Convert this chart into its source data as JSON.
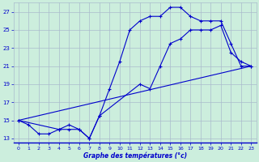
{
  "title": "Graphe des températures (°c)",
  "bg_color": "#cceedd",
  "grid_color": "#aabbcc",
  "line_color": "#0000cc",
  "xlim_min": -0.5,
  "xlim_max": 23.5,
  "ylim_min": 12.5,
  "ylim_max": 28.0,
  "xticks": [
    0,
    1,
    2,
    3,
    4,
    5,
    6,
    7,
    8,
    9,
    10,
    11,
    12,
    13,
    14,
    15,
    16,
    17,
    18,
    19,
    20,
    21,
    22,
    23
  ],
  "yticks": [
    13,
    15,
    17,
    19,
    21,
    23,
    25,
    27
  ],
  "curve1_x": [
    0,
    1,
    2,
    3,
    4,
    5,
    6,
    7,
    8,
    9,
    10,
    11,
    12,
    13,
    14,
    15,
    16,
    17,
    18,
    19,
    20,
    21,
    22,
    23
  ],
  "curve1_y": [
    15,
    14.5,
    13.5,
    13.5,
    14.0,
    14.5,
    14.0,
    13.0,
    15.5,
    18.5,
    21.5,
    25.0,
    26.0,
    26.5,
    26.5,
    27.5,
    27.5,
    26.5,
    26.0,
    26.0,
    26.0,
    23.5,
    21.0,
    21.0
  ],
  "curve2_x": [
    0,
    4,
    5,
    6,
    7,
    8,
    12,
    13,
    14,
    15,
    16,
    17,
    18,
    19,
    20,
    21,
    22,
    23
  ],
  "curve2_y": [
    15,
    14,
    14,
    14,
    13,
    15.5,
    19,
    18.5,
    21,
    23.5,
    24,
    25,
    25.0,
    25.0,
    25.5,
    22.5,
    21.5,
    21.0
  ],
  "curve3_x": [
    0,
    23
  ],
  "curve3_y": [
    15,
    21.0
  ]
}
